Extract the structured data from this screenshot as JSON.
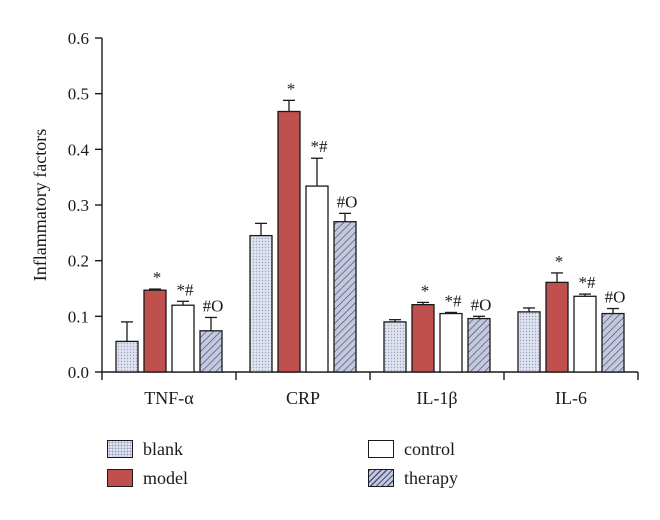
{
  "chart_data": {
    "type": "bar",
    "ylabel": "Inflammatory factors",
    "xlabel": "",
    "ylim": [
      0,
      0.6
    ],
    "yticks": [
      "0.0",
      "0.1",
      "0.2",
      "0.3",
      "0.4",
      "0.5",
      "0.6"
    ],
    "categories": [
      "TNF-α",
      "CRP",
      "IL-1β",
      "IL-6"
    ],
    "series": [
      {
        "name": "blank",
        "values": [
          0.055,
          0.245,
          0.09,
          0.108
        ],
        "errors": [
          0.035,
          0.022,
          0.004,
          0.007
        ],
        "fill": "#dfe3ef",
        "marks": [
          "",
          "",
          "",
          ""
        ]
      },
      {
        "name": "model",
        "values": [
          0.147,
          0.468,
          0.121,
          0.161
        ],
        "errors": [
          0.002,
          0.02,
          0.004,
          0.017
        ],
        "fill": "#c0504d",
        "marks": [
          "*",
          "*",
          "*",
          "*"
        ]
      },
      {
        "name": "control",
        "values": [
          0.12,
          0.334,
          0.105,
          0.136
        ],
        "errors": [
          0.007,
          0.05,
          0.002,
          0.004
        ],
        "fill": "#ffffff",
        "marks": [
          "*#",
          "*#",
          "*#",
          "*#"
        ]
      },
      {
        "name": "therapy",
        "values": [
          0.074,
          0.27,
          0.096,
          0.105
        ],
        "errors": [
          0.024,
          0.015,
          0.004,
          0.009
        ],
        "fill": "#c5c9dc",
        "marks": [
          "#O",
          "#O",
          "#O",
          "#O"
        ]
      }
    ],
    "legend": {
      "placement": "bottom",
      "items": [
        "blank",
        "model",
        "control",
        "therapy"
      ]
    },
    "grid": false
  }
}
